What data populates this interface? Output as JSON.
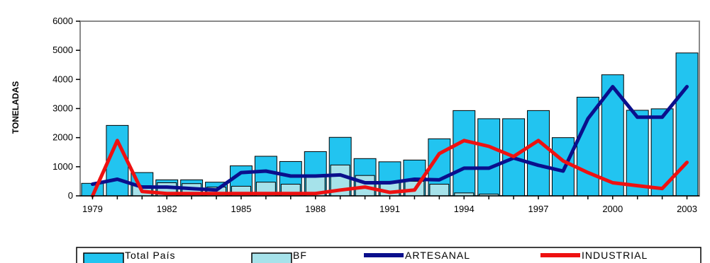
{
  "chart_data": {
    "type": "bar",
    "ylabel": "TONELADAS",
    "xlabel": "",
    "ylim": [
      0,
      6000
    ],
    "yticks": [
      0,
      1000,
      2000,
      3000,
      4000,
      5000,
      6000
    ],
    "x": [
      1979,
      1980,
      1981,
      1982,
      1983,
      1984,
      1985,
      1986,
      1987,
      1988,
      1989,
      1990,
      1991,
      1992,
      1993,
      1994,
      1995,
      1996,
      1997,
      1998,
      1999,
      2000,
      2001,
      2002,
      2003
    ],
    "xtick_labels": [
      "1979",
      "1982",
      "1985",
      "1988",
      "1991",
      "1994",
      "1997",
      "2000",
      "2003"
    ],
    "series": [
      {
        "name": "Total País",
        "kind": "bar",
        "color": "#22c4f0",
        "values": [
          430,
          2420,
          800,
          550,
          550,
          470,
          1030,
          1360,
          1180,
          1520,
          2010,
          1280,
          1170,
          1230,
          1960,
          2930,
          2650,
          2650,
          2930,
          2000,
          3390,
          4160,
          2940,
          2990,
          4910
        ]
      },
      {
        "name": "BF",
        "kind": "bar",
        "color": "#a6e2ea",
        "values": [
          0,
          0,
          350,
          450,
          420,
          300,
          330,
          470,
          400,
          700,
          1060,
          700,
          500,
          500,
          400,
          100,
          60,
          0,
          0,
          0,
          0,
          0,
          0,
          0,
          0
        ]
      },
      {
        "name": "ARTESANAL",
        "kind": "line",
        "color": "#0a0f8c",
        "values": [
          400,
          570,
          300,
          300,
          250,
          200,
          800,
          850,
          680,
          680,
          720,
          450,
          450,
          570,
          550,
          950,
          950,
          1300,
          1050,
          850,
          2650,
          3750,
          2700,
          2700,
          3750
        ]
      },
      {
        "name": "INDUSTRIAL",
        "kind": "line",
        "color": "#ee1111",
        "values": [
          0,
          1900,
          150,
          80,
          80,
          80,
          80,
          80,
          80,
          80,
          200,
          300,
          120,
          200,
          1450,
          1900,
          1700,
          1350,
          1900,
          1200,
          800,
          450,
          350,
          250,
          1150
        ]
      }
    ],
    "grid": false,
    "legend_position": "bottom"
  }
}
